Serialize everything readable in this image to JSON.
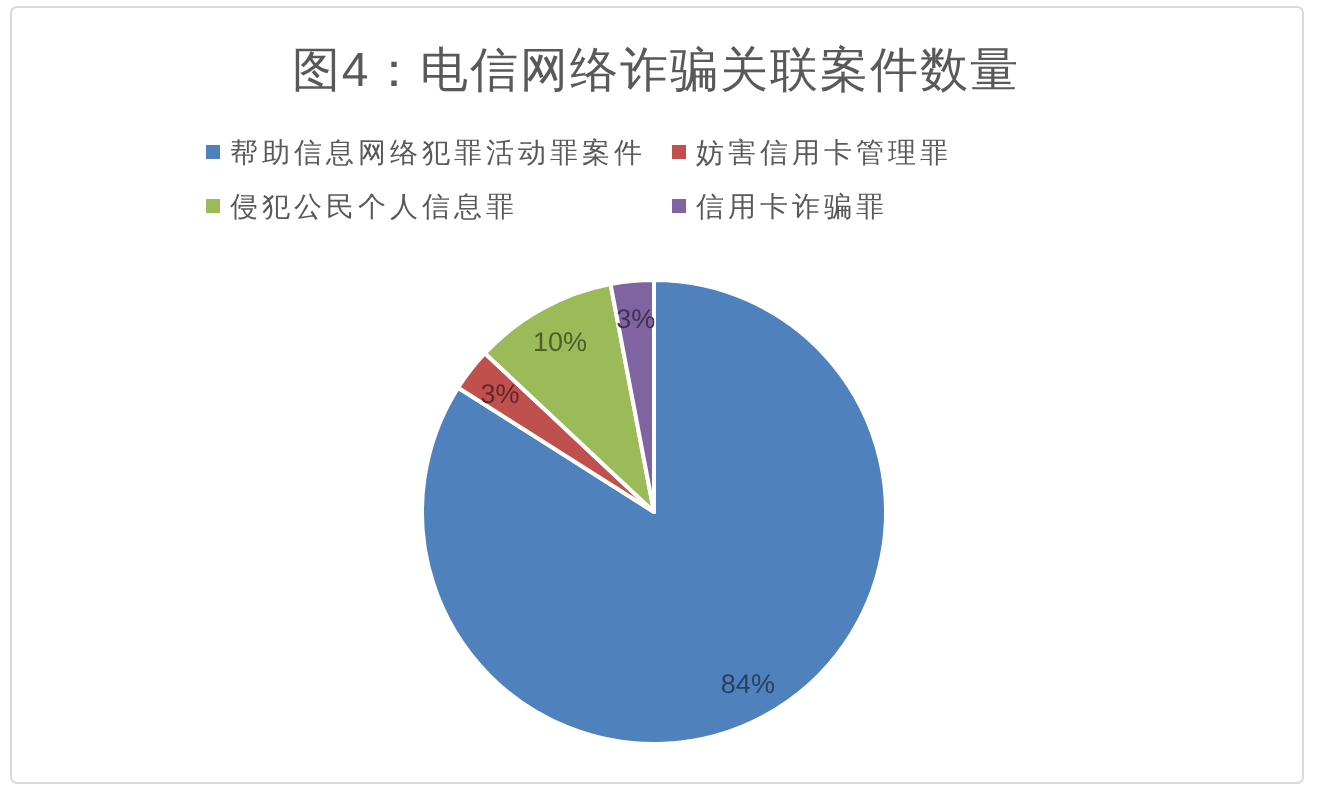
{
  "chart_data": {
    "type": "pie",
    "title": "图4：电信网络诈骗关联案件数量",
    "categories": [
      "帮助信息网络犯罪活动罪案件",
      "妨害信用卡管理罪",
      "侵犯公民个人信息罪",
      "信用卡诈骗罪"
    ],
    "values": [
      84,
      3,
      10,
      3
    ],
    "colors": [
      "#4f81bd",
      "#c0504d",
      "#9bbb59",
      "#8064a2"
    ],
    "value_labels": [
      "84%",
      "3%",
      "10%",
      "3%"
    ],
    "legend": "top"
  }
}
